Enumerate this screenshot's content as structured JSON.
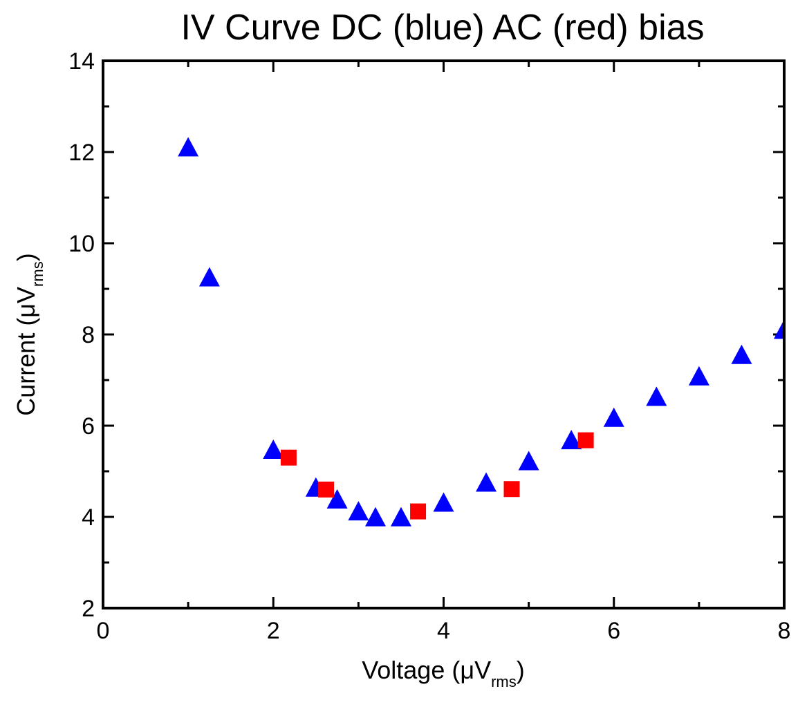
{
  "chart_data": {
    "type": "scatter",
    "title": "IV Curve DC (blue) AC (red) bias",
    "xlabel": {
      "prefix": "Voltage (",
      "mu": "μ",
      "unit": "V",
      "sub": "rms",
      "suffix": ")"
    },
    "ylabel": {
      "prefix": "Current (",
      "mu": "μ",
      "unit": "V",
      "sub": "rms",
      "suffix": ")"
    },
    "xlim": [
      0,
      8
    ],
    "ylim": [
      2,
      14
    ],
    "x_ticks": [
      0,
      2,
      4,
      6,
      8
    ],
    "y_ticks": [
      2,
      4,
      6,
      8,
      10,
      12,
      14
    ],
    "x_minor_ticks": [
      1,
      3,
      5,
      7
    ],
    "y_minor_ticks": [
      3,
      5,
      7,
      9,
      11,
      13
    ],
    "grid": false,
    "legend": "none",
    "series": [
      {
        "marker": "triangle",
        "color": "#0000ff",
        "x": [
          1.0,
          1.25,
          2.0,
          2.5,
          2.75,
          3.0,
          3.2,
          3.5,
          4.0,
          4.5,
          5.0,
          5.5,
          6.0,
          6.5,
          7.0,
          7.5,
          8.0
        ],
        "y": [
          12.1,
          9.25,
          5.47,
          4.64,
          4.38,
          4.12,
          3.99,
          3.99,
          4.31,
          4.75,
          5.22,
          5.68,
          6.17,
          6.63,
          7.08,
          7.55,
          8.1
        ]
      },
      {
        "marker": "square",
        "color": "#ff0000",
        "x": [
          2.18,
          2.62,
          3.7,
          4.8,
          5.67
        ],
        "y": [
          5.3,
          4.6,
          4.12,
          4.61,
          5.68
        ]
      }
    ]
  }
}
